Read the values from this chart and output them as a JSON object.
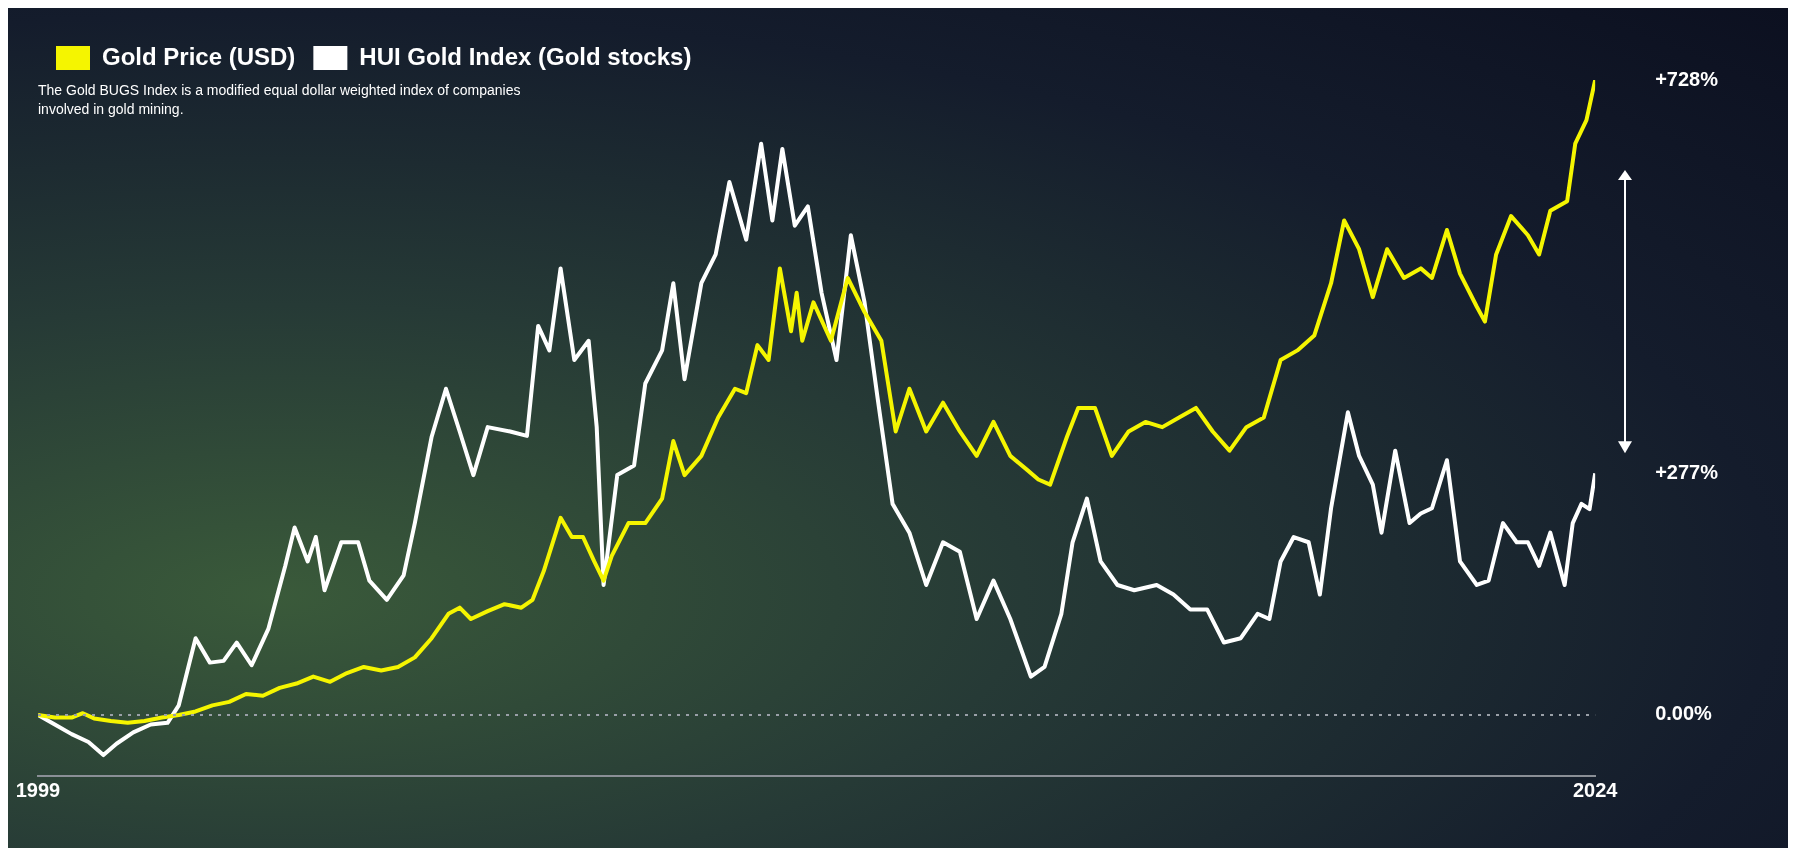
{
  "chart_data": {
    "type": "line",
    "annotations": [
      "The Gold BUGS Index is a modified equal dollar weighted index of companies involved in gold mining."
    ],
    "xlim": [
      1999,
      2024
    ],
    "xticks": [
      1999,
      2024
    ],
    "ylim": [
      -70,
      728
    ],
    "yticks": [
      {
        "value": 0,
        "label": "0.00%"
      },
      {
        "value": 277,
        "label": "+277%"
      },
      {
        "value": 728,
        "label": "+728%"
      }
    ],
    "grid": false,
    "legend": "top left",
    "marker": "none",
    "line_style": "solid",
    "ref_lines": [
      {
        "axis": "y",
        "value": 0,
        "color": "#9aa0a8",
        "line_style": "dotted"
      }
    ],
    "series": [
      {
        "name": "Gold Price (USD)",
        "color": "#f5f500",
        "x": [
          1999.0,
          1999.27,
          1999.54,
          1999.72,
          1999.9,
          2000.17,
          2000.44,
          2000.71,
          2000.99,
          2001.26,
          2001.53,
          2001.8,
          2002.07,
          2002.34,
          2002.61,
          2002.88,
          2003.15,
          2003.42,
          2003.69,
          2003.96,
          2004.23,
          2004.51,
          2004.78,
          2005.05,
          2005.32,
          2005.59,
          2005.77,
          2005.95,
          2006.22,
          2006.49,
          2006.76,
          2006.94,
          2007.12,
          2007.39,
          2007.57,
          2007.75,
          2007.93,
          2008.08,
          2008.21,
          2008.48,
          2008.75,
          2009.02,
          2009.2,
          2009.38,
          2009.65,
          2009.92,
          2010.19,
          2010.37,
          2010.55,
          2010.73,
          2010.91,
          2011.09,
          2011.18,
          2011.27,
          2011.45,
          2011.73,
          2012.0,
          2012.27,
          2012.54,
          2012.77,
          2012.99,
          2013.26,
          2013.53,
          2013.8,
          2014.07,
          2014.34,
          2014.61,
          2014.88,
          2015.06,
          2015.25,
          2015.52,
          2015.7,
          2015.97,
          2016.24,
          2016.51,
          2016.78,
          2017.05,
          2017.32,
          2017.59,
          2017.86,
          2018.13,
          2018.4,
          2018.68,
          2018.95,
          2019.22,
          2019.49,
          2019.76,
          2019.97,
          2020.21,
          2020.43,
          2020.66,
          2020.93,
          2021.2,
          2021.38,
          2021.62,
          2021.83,
          2022.1,
          2022.23,
          2022.41,
          2022.65,
          2022.92,
          2023.1,
          2023.28,
          2023.55,
          2023.68,
          2023.86,
          2024.0
        ],
        "values": [
          0,
          -3,
          -3,
          2,
          -4,
          -7,
          -9,
          -7,
          -3,
          0,
          4,
          11,
          15,
          24,
          22,
          31,
          36,
          44,
          38,
          48,
          55,
          51,
          55,
          66,
          88,
          116,
          123,
          110,
          119,
          127,
          123,
          132,
          165,
          226,
          204,
          204,
          176,
          154,
          182,
          220,
          220,
          248,
          314,
          275,
          297,
          341,
          374,
          369,
          424,
          407,
          512,
          440,
          484,
          429,
          473,
          429,
          501,
          462,
          429,
          325,
          374,
          325,
          358,
          325,
          297,
          336,
          297,
          281,
          270,
          264,
          319,
          352,
          352,
          297,
          325,
          336,
          330,
          341,
          352,
          325,
          303,
          330,
          341,
          407,
          418,
          435,
          495,
          567,
          534,
          479,
          534,
          501,
          512,
          501,
          556,
          506,
          468,
          451,
          528,
          572,
          550,
          528,
          578,
          589,
          655,
          682,
          728
        ]
      },
      {
        "name": "HUI Gold Index (Gold stocks)",
        "color": "#ffffff",
        "x": [
          1999.0,
          1999.27,
          1999.54,
          1999.81,
          2000.05,
          2000.26,
          2000.53,
          2000.81,
          2001.08,
          2001.26,
          2001.53,
          2001.76,
          2001.98,
          2002.19,
          2002.43,
          2002.7,
          2002.97,
          2003.12,
          2003.33,
          2003.46,
          2003.6,
          2003.87,
          2004.14,
          2004.32,
          2004.6,
          2004.87,
          2005.05,
          2005.32,
          2005.55,
          2005.77,
          2005.99,
          2006.22,
          2006.58,
          2006.85,
          2007.03,
          2007.21,
          2007.39,
          2007.61,
          2007.84,
          2007.97,
          2008.08,
          2008.3,
          2008.57,
          2008.75,
          2009.02,
          2009.2,
          2009.38,
          2009.65,
          2009.88,
          2010.1,
          2010.37,
          2010.61,
          2010.79,
          2010.95,
          2011.15,
          2011.36,
          2011.58,
          2011.82,
          2012.05,
          2012.27,
          2012.48,
          2012.72,
          2012.99,
          2013.26,
          2013.53,
          2013.8,
          2014.07,
          2014.34,
          2014.61,
          2014.94,
          2015.16,
          2015.43,
          2015.61,
          2015.84,
          2016.06,
          2016.33,
          2016.6,
          2016.96,
          2017.23,
          2017.5,
          2017.77,
          2018.04,
          2018.31,
          2018.58,
          2018.77,
          2018.95,
          2019.16,
          2019.4,
          2019.58,
          2019.76,
          2020.03,
          2020.21,
          2020.43,
          2020.57,
          2020.79,
          2021.02,
          2021.2,
          2021.38,
          2021.62,
          2021.83,
          2022.1,
          2022.29,
          2022.52,
          2022.74,
          2022.92,
          2023.1,
          2023.28,
          2023.51,
          2023.64,
          2023.78,
          2023.91,
          2024.0
        ],
        "values": [
          0,
          -11,
          -22,
          -31,
          -46,
          -33,
          -20,
          -11,
          -9,
          11,
          88,
          60,
          62,
          83,
          57,
          99,
          171,
          215,
          176,
          204,
          143,
          198,
          198,
          154,
          132,
          160,
          220,
          319,
          374,
          325,
          275,
          330,
          325,
          320,
          446,
          418,
          512,
          407,
          429,
          330,
          149,
          275,
          286,
          380,
          418,
          495,
          385,
          495,
          528,
          611,
          545,
          655,
          567,
          649,
          561,
          583,
          484,
          407,
          550,
          473,
          363,
          242,
          209,
          149,
          198,
          187,
          110,
          154,
          110,
          44,
          55,
          116,
          198,
          248,
          176,
          149,
          143,
          149,
          138,
          121,
          121,
          83,
          88,
          116,
          110,
          176,
          204,
          198,
          138,
          237,
          347,
          297,
          264,
          209,
          303,
          220,
          231,
          237,
          292,
          176,
          149,
          154,
          220,
          198,
          198,
          171,
          209,
          149,
          220,
          242,
          236,
          277
        ]
      }
    ]
  }
}
